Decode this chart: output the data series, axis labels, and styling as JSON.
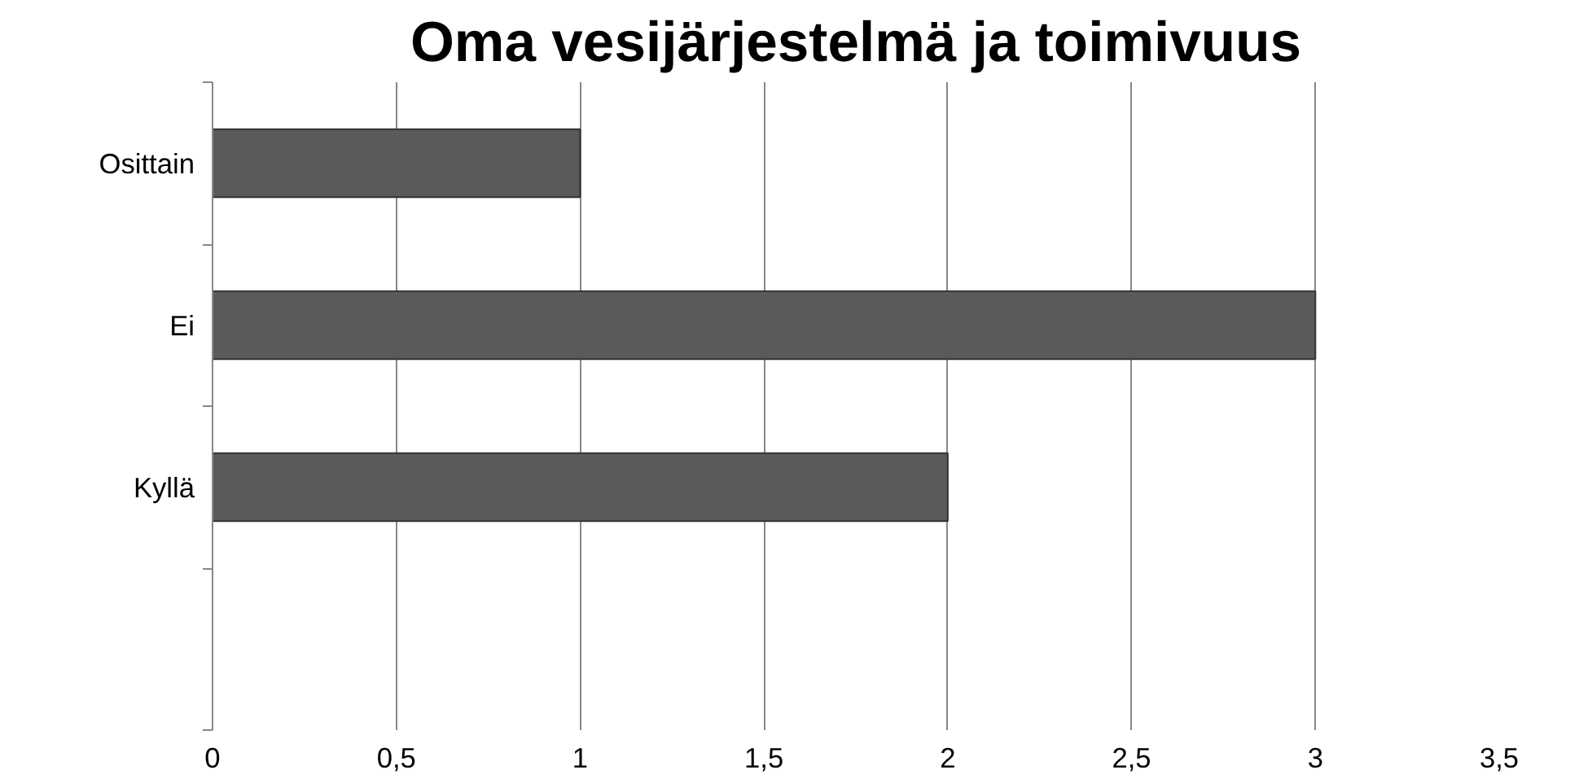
{
  "chart_data": {
    "type": "bar",
    "orientation": "horizontal",
    "title": "Oma vesijärjestelmä ja toimivuus",
    "categories": [
      "Osittain",
      "Ei",
      "Kyllä",
      null
    ],
    "values": [
      1,
      3,
      2,
      null
    ],
    "color": "#5a5a5a",
    "xlim": [
      0,
      3.5
    ],
    "xticks": [
      0,
      {
        "value": 0.5,
        "label": "0,5"
      },
      1,
      {
        "value": 1.5,
        "label": "1,5"
      },
      2,
      {
        "value": 2.5,
        "label": "2,5"
      },
      3,
      {
        "value": 3.5,
        "label": "3,5"
      }
    ],
    "grid": "x"
  }
}
